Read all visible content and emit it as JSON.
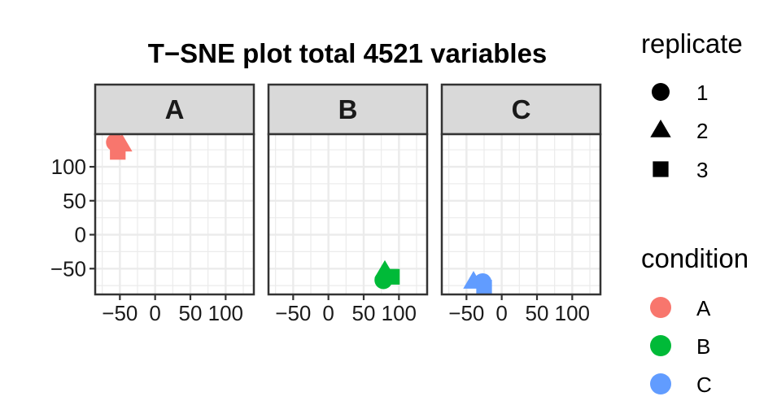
{
  "chart_data": {
    "type": "scatter",
    "title": "T−SNE plot total 4521 variables",
    "xlabel": "",
    "ylabel": "",
    "xlim": [
      -85,
      140
    ],
    "ylim": [
      -88,
      148
    ],
    "x_ticks": [
      -50,
      0,
      50,
      100
    ],
    "x_tick_labels": [
      "−50",
      "0",
      "50",
      "100"
    ],
    "y_ticks": [
      -50,
      0,
      50,
      100
    ],
    "y_tick_labels": [
      "−50",
      "0",
      "50",
      "100"
    ],
    "grid": true,
    "facets": [
      {
        "name": "A",
        "points": [
          {
            "x": -57,
            "y": 136,
            "replicate": "1",
            "condition": "A"
          },
          {
            "x": -47,
            "y": 133,
            "replicate": "2",
            "condition": "A"
          },
          {
            "x": -53,
            "y": 122,
            "replicate": "3",
            "condition": "A"
          }
        ]
      },
      {
        "name": "B",
        "points": [
          {
            "x": 78,
            "y": -67,
            "replicate": "1",
            "condition": "B"
          },
          {
            "x": 80,
            "y": -53,
            "replicate": "2",
            "condition": "B"
          },
          {
            "x": 90,
            "y": -62,
            "replicate": "3",
            "condition": "B"
          }
        ]
      },
      {
        "name": "C",
        "points": [
          {
            "x": -27,
            "y": -70,
            "replicate": "1",
            "condition": "C"
          },
          {
            "x": -40,
            "y": -69,
            "replicate": "2",
            "condition": "C"
          },
          {
            "x": -25,
            "y": -78,
            "replicate": "3",
            "condition": "C"
          }
        ]
      }
    ],
    "legend_position": "right",
    "legends": {
      "shape": {
        "title": "replicate",
        "items": [
          {
            "label": "1",
            "shape": "circle"
          },
          {
            "label": "2",
            "shape": "triangle"
          },
          {
            "label": "3",
            "shape": "square"
          }
        ]
      },
      "color": {
        "title": "condition",
        "items": [
          {
            "label": "A",
            "color": "#F8766D"
          },
          {
            "label": "B",
            "color": "#00BA38"
          },
          {
            "label": "C",
            "color": "#619CFF"
          }
        ]
      }
    }
  },
  "colors": {
    "A": "#F8766D",
    "B": "#00BA38",
    "C": "#619CFF",
    "strip_background": "#D9D9D9",
    "panel_border": "#333333",
    "grid": "#EBEBEB"
  }
}
